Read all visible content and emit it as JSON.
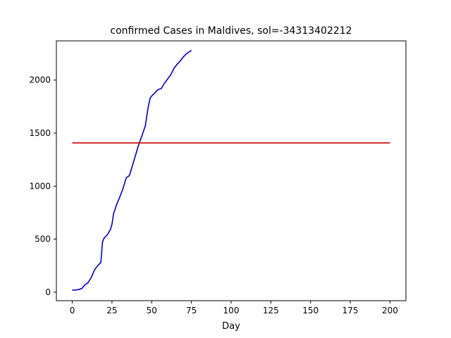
{
  "chart_data": {
    "type": "line",
    "title": "confirmed Cases in Maldives, sol=-34313402212",
    "xlabel": "Day",
    "ylabel": "",
    "xlim": [
      -10,
      210
    ],
    "ylim": [
      -80,
      2370
    ],
    "xticks": [
      0,
      25,
      50,
      75,
      100,
      125,
      150,
      175,
      200
    ],
    "yticks": [
      0,
      500,
      1000,
      1500,
      2000
    ],
    "grid": false,
    "series": [
      {
        "color": "#0000cc",
        "x": [
          0,
          2,
          4,
          6,
          8,
          10,
          12,
          14,
          15,
          16,
          18,
          19,
          20,
          22,
          24,
          25,
          26,
          28,
          30,
          32,
          34,
          36,
          38,
          40,
          42,
          44,
          46,
          47,
          48,
          49,
          50,
          52,
          54,
          56,
          58,
          60,
          62,
          64,
          66,
          68,
          70,
          72,
          74,
          75
        ],
        "y": [
          20,
          20,
          25,
          35,
          70,
          90,
          140,
          210,
          230,
          250,
          280,
          470,
          510,
          540,
          590,
          640,
          740,
          830,
          900,
          980,
          1080,
          1100,
          1200,
          1300,
          1400,
          1480,
          1570,
          1670,
          1760,
          1830,
          1850,
          1880,
          1910,
          1920,
          1970,
          2010,
          2050,
          2110,
          2150,
          2180,
          2220,
          2250,
          2270,
          2280
        ]
      },
      {
        "color": "#cc0000",
        "x": [
          0,
          200
        ],
        "y": [
          1408,
          1408
        ]
      }
    ]
  }
}
